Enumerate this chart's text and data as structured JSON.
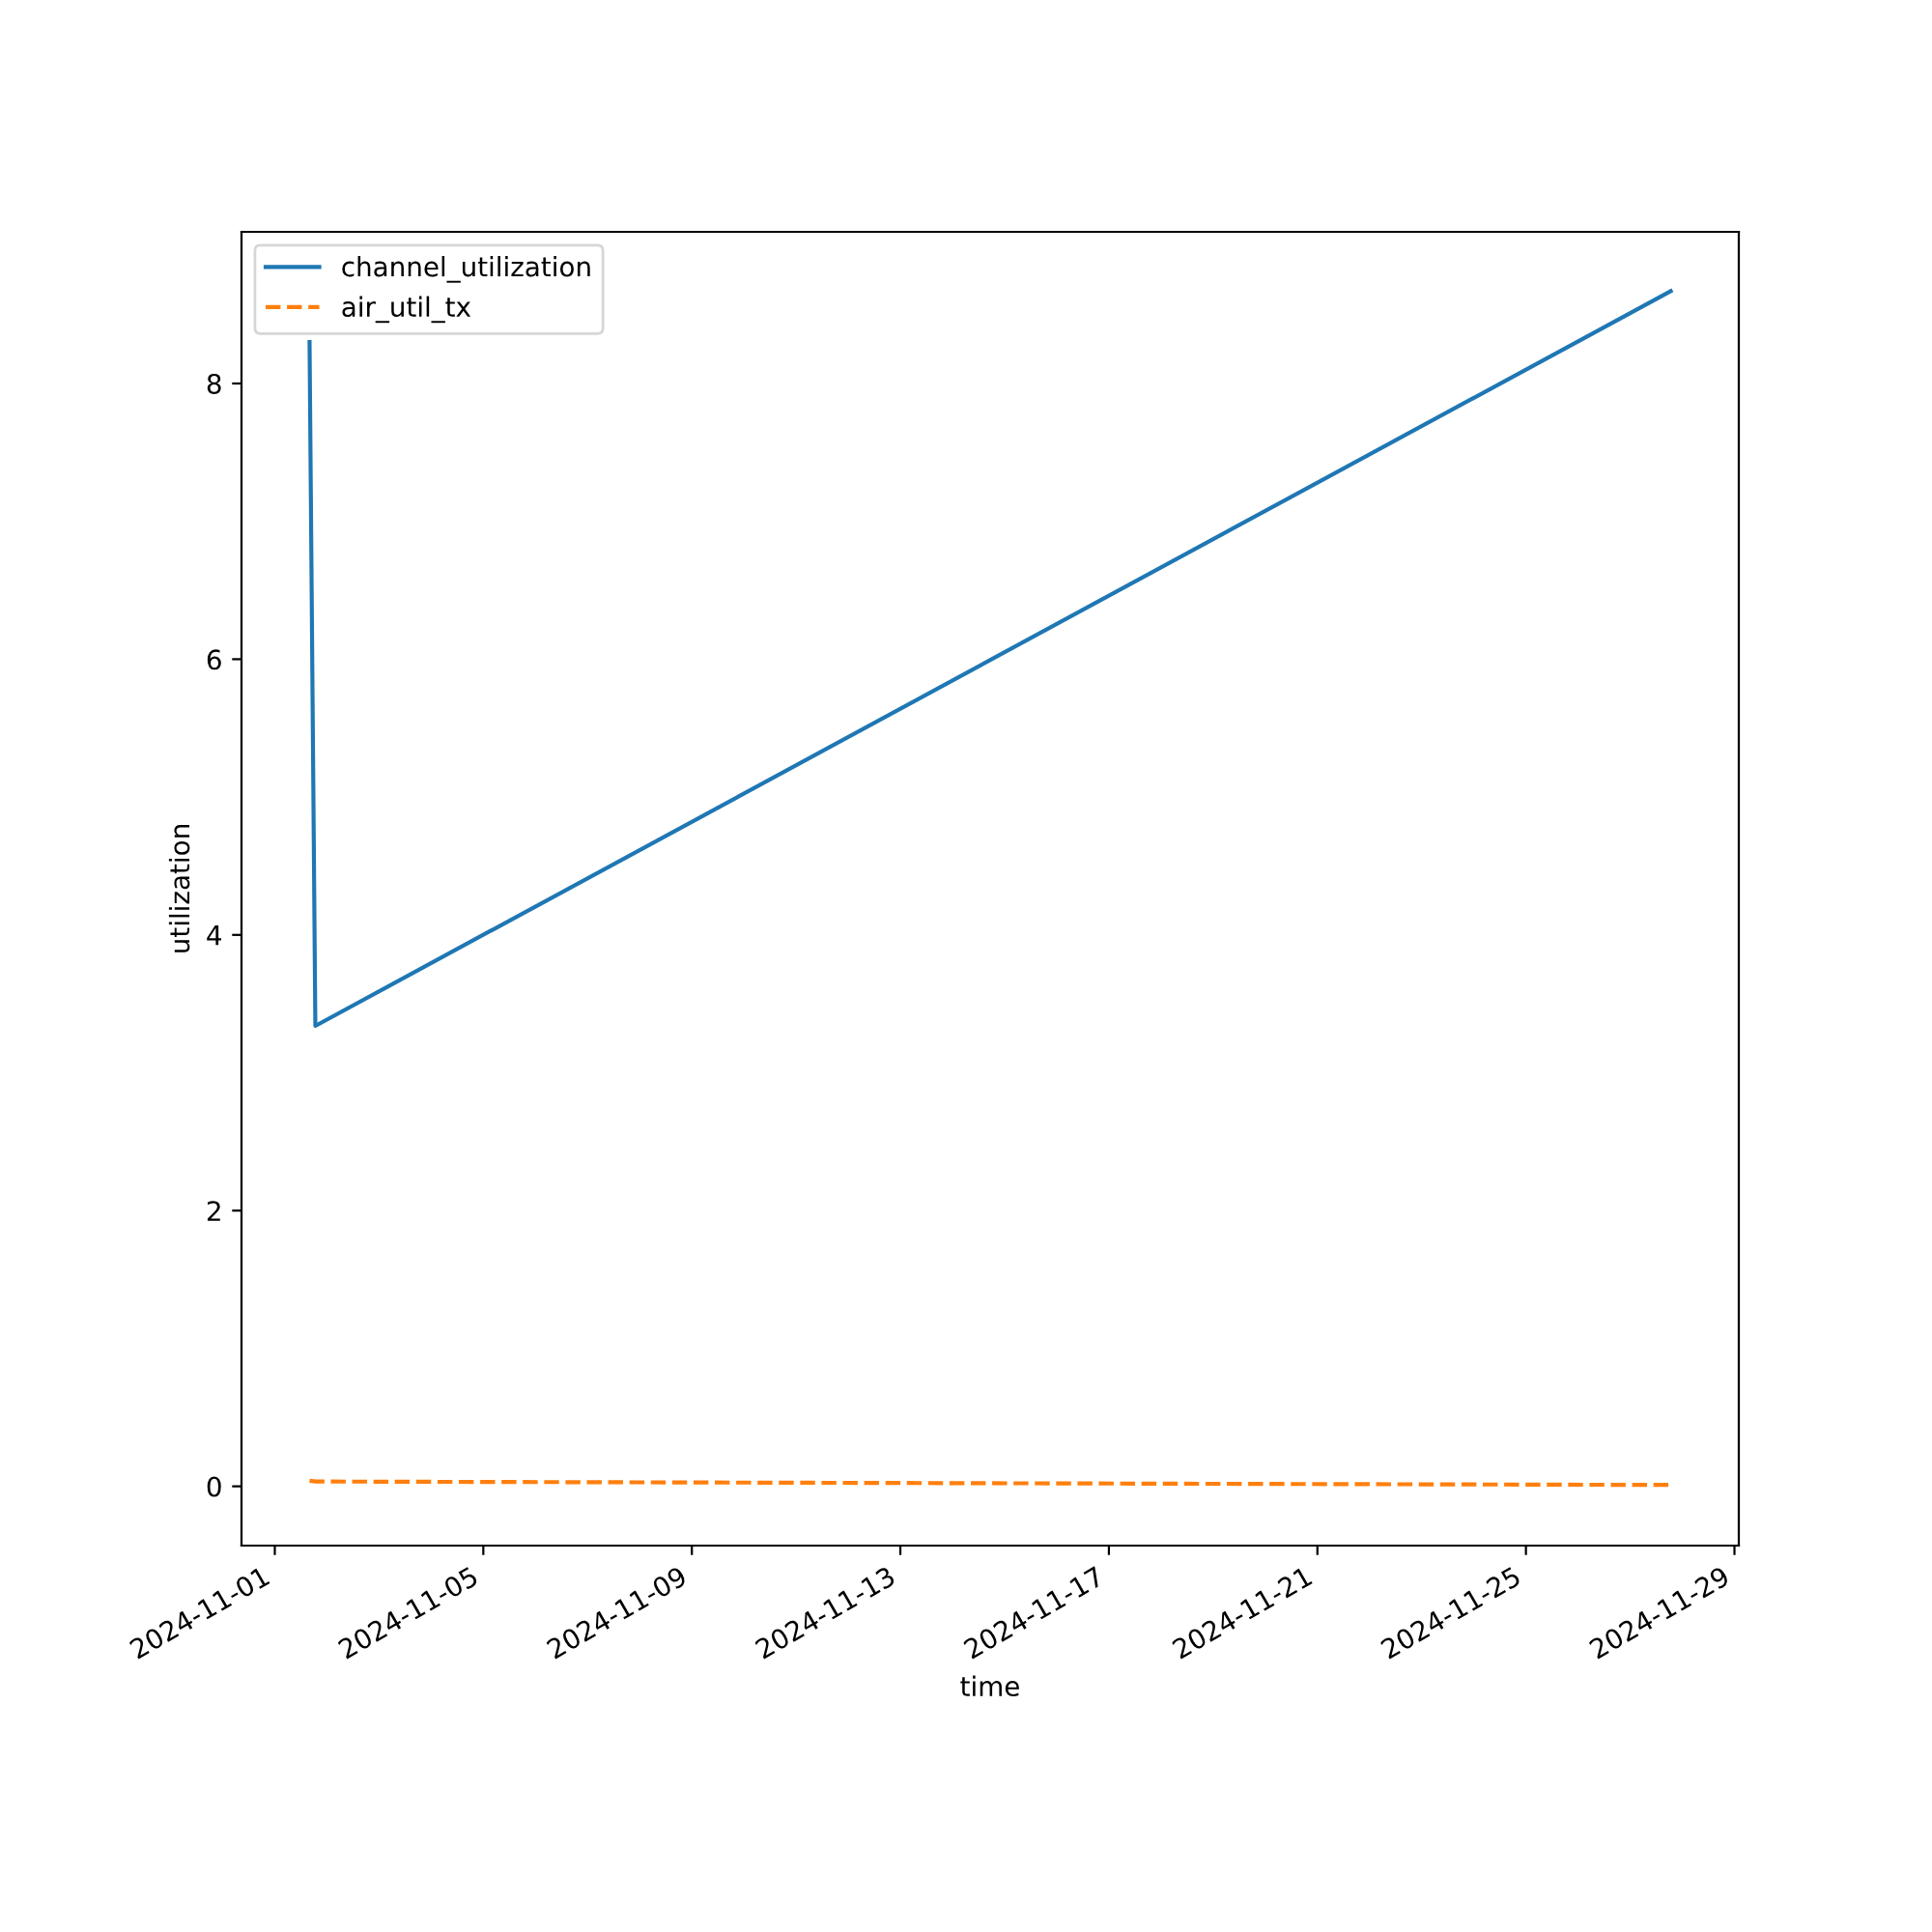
{
  "chart_data": {
    "type": "line",
    "xlabel": "time",
    "ylabel": "utilization",
    "x": [
      "2024-11-01T16:00",
      "2024-11-01T18:40",
      "2024-11-27T18:40"
    ],
    "series": [
      {
        "name": "channel_utilization",
        "color": "#1f77b4",
        "line_style": "solid",
        "values": [
          8.3,
          3.34,
          8.67
        ]
      },
      {
        "name": "air_util_tx",
        "color": "#ff7f0e",
        "line_style": "dashed",
        "values": [
          0.04,
          0.035,
          0.01
        ]
      }
    ],
    "xlim": [
      "2024-10-31T08:40",
      "2024-11-29T02:00"
    ],
    "xticks": [
      "2024-11-01",
      "2024-11-05",
      "2024-11-09",
      "2024-11-13",
      "2024-11-17",
      "2024-11-21",
      "2024-11-25",
      "2024-11-29"
    ],
    "ylim": [
      -0.43,
      9.1
    ],
    "yticks": [
      0,
      2,
      4,
      6,
      8
    ],
    "legend": "top left",
    "grid": false
  }
}
